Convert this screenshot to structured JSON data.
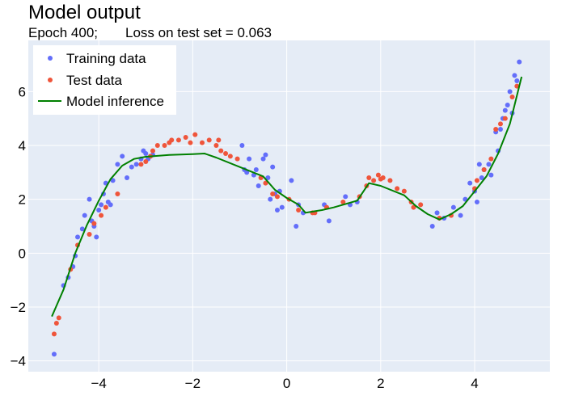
{
  "chart_data": {
    "type": "scatter",
    "title": "Model output",
    "subtitle": {
      "epoch": "Epoch 400;",
      "loss": "Loss on test set = 0.063"
    },
    "xlabel": "",
    "ylabel": "",
    "xlim": [
      -5.5,
      5.6
    ],
    "ylim": [
      -4.4,
      7.9
    ],
    "xticks": [
      -4,
      -2,
      0,
      2,
      4
    ],
    "yticks": [
      -4,
      -2,
      0,
      2,
      4,
      6
    ],
    "xtick_labels": [
      "−4",
      "−2",
      "0",
      "2",
      "4"
    ],
    "ytick_labels": [
      "−4",
      "−2",
      "0",
      "2",
      "4",
      "6"
    ],
    "grid": true,
    "legend_position": "top-left",
    "colors": {
      "background": "#e5ecf6",
      "grid": "#ffffff",
      "training": "#636efa",
      "test": "#ef553b",
      "model": "#008000"
    },
    "series": [
      {
        "name": "Training data",
        "kind": "points",
        "x": [
          -4.95,
          -4.75,
          -4.65,
          -4.55,
          -4.5,
          -4.45,
          -4.35,
          -4.3,
          -4.2,
          -4.15,
          -4.1,
          -4.05,
          -4.0,
          -3.95,
          -3.9,
          -3.85,
          -3.8,
          -3.75,
          -3.7,
          -3.6,
          -3.5,
          -3.4,
          -3.3,
          -3.2,
          -3.1,
          -3.05,
          -3.0,
          -2.95,
          -2.9,
          -2.85,
          -0.95,
          -0.9,
          -0.85,
          -0.8,
          -0.7,
          -0.65,
          -0.6,
          -0.5,
          -0.45,
          -0.4,
          -0.35,
          -0.3,
          -0.25,
          -0.2,
          -0.15,
          -0.1,
          0.1,
          0.2,
          0.25,
          0.35,
          0.8,
          0.9,
          1.25,
          1.35,
          1.5,
          3.1,
          3.2,
          3.35,
          3.55,
          3.7,
          3.8,
          3.9,
          4.0,
          4.05,
          4.1,
          4.15,
          4.2,
          4.3,
          4.35,
          4.45,
          4.5,
          4.55,
          4.6,
          4.65,
          4.7,
          4.75,
          4.8,
          4.85,
          4.9,
          4.95
        ],
        "y": [
          -3.75,
          -1.2,
          -0.9,
          -0.5,
          -0.1,
          0.6,
          0.9,
          1.4,
          2.0,
          1.2,
          1.0,
          0.6,
          1.6,
          1.8,
          2.2,
          2.6,
          1.9,
          1.8,
          2.7,
          3.3,
          3.6,
          2.8,
          3.2,
          3.3,
          3.5,
          3.8,
          3.7,
          3.5,
          3.6,
          3.65,
          4.0,
          3.1,
          3.0,
          3.5,
          2.9,
          3.1,
          2.5,
          3.5,
          3.65,
          2.8,
          2.0,
          3.2,
          2.2,
          1.6,
          2.3,
          1.7,
          2.7,
          1.0,
          1.8,
          1.5,
          1.8,
          1.2,
          2.1,
          1.8,
          1.9,
          1.0,
          1.5,
          1.3,
          1.7,
          1.4,
          2.0,
          2.6,
          2.3,
          1.9,
          3.3,
          2.8,
          3.1,
          3.3,
          2.9,
          4.5,
          3.8,
          4.6,
          5.0,
          5.3,
          5.5,
          6.0,
          5.2,
          6.6,
          6.4,
          7.1
        ]
      },
      {
        "name": "Test data",
        "kind": "points",
        "x": [
          -4.95,
          -4.9,
          -4.85,
          -4.6,
          -4.45,
          -4.2,
          -4.1,
          -3.95,
          -3.85,
          -3.6,
          -3.1,
          -3.0,
          -2.9,
          -2.85,
          -2.75,
          -2.6,
          -2.5,
          -2.45,
          -2.3,
          -2.15,
          -2.05,
          -1.95,
          -1.8,
          -1.65,
          -1.5,
          -1.45,
          -1.4,
          -1.3,
          -1.2,
          -1.05,
          -0.55,
          -0.45,
          -0.3,
          -0.2,
          0.05,
          0.25,
          0.55,
          0.6,
          0.85,
          1.2,
          1.55,
          1.7,
          1.75,
          1.85,
          1.95,
          2.0,
          2.05,
          2.2,
          2.35,
          2.5,
          2.65,
          2.7,
          2.85,
          3.25,
          3.5,
          4.0,
          4.05,
          4.2,
          4.35,
          4.45,
          4.55,
          4.65,
          4.8,
          4.9
        ],
        "y": [
          -3.0,
          -2.6,
          -2.4,
          -0.6,
          0.3,
          0.7,
          1.1,
          1.4,
          1.7,
          2.2,
          3.3,
          3.4,
          3.6,
          3.8,
          4.0,
          4.0,
          4.1,
          4.2,
          4.2,
          4.3,
          4.1,
          4.4,
          4.1,
          4.2,
          4.0,
          4.2,
          3.8,
          3.7,
          3.6,
          3.5,
          2.8,
          2.6,
          2.2,
          2.1,
          2.0,
          1.6,
          1.5,
          1.5,
          1.7,
          1.9,
          2.1,
          2.5,
          2.8,
          2.7,
          2.9,
          2.75,
          2.8,
          2.7,
          2.4,
          2.3,
          1.9,
          1.7,
          1.8,
          1.3,
          1.4,
          2.4,
          2.7,
          3.1,
          3.5,
          4.6,
          4.8,
          5.0,
          5.8,
          6.2
        ]
      },
      {
        "name": "Model inference",
        "kind": "line",
        "x": [
          -5.0,
          -4.75,
          -4.5,
          -4.25,
          -4.0,
          -3.75,
          -3.5,
          -3.25,
          -3.0,
          -2.5,
          -2.0,
          -1.75,
          -1.5,
          -1.0,
          -0.5,
          -0.25,
          0.0,
          0.25,
          0.4,
          0.75,
          1.0,
          1.5,
          1.75,
          2.0,
          2.5,
          2.75,
          3.0,
          3.25,
          3.5,
          3.75,
          4.0,
          4.25,
          4.5,
          4.75,
          5.0
        ],
        "y": [
          -2.35,
          -1.35,
          0.0,
          1.05,
          1.95,
          2.75,
          3.25,
          3.5,
          3.58,
          3.65,
          3.68,
          3.7,
          3.55,
          3.2,
          2.85,
          2.35,
          2.05,
          1.8,
          1.5,
          1.6,
          1.7,
          1.95,
          2.6,
          2.5,
          2.15,
          1.75,
          1.45,
          1.25,
          1.45,
          1.75,
          2.3,
          2.85,
          3.7,
          4.8,
          6.55
        ]
      }
    ]
  }
}
